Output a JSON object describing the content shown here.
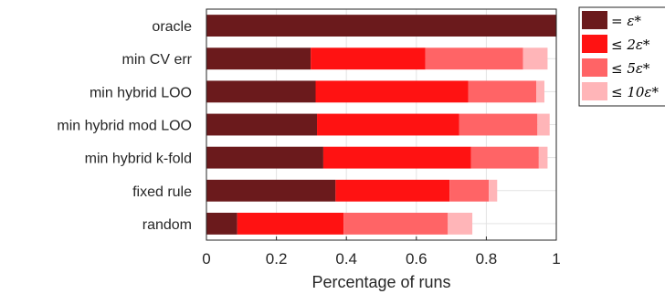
{
  "chart_data": {
    "type": "bar",
    "orientation": "horizontal",
    "stacked": true,
    "categories": [
      "oracle",
      "min CV err",
      "min hybrid LOO",
      "min hybrid mod LOO",
      "min hybrid k-fold",
      "fixed rule",
      "random"
    ],
    "series": [
      {
        "name": "= ε*",
        "color": "#6b1a1c",
        "values": [
          1.0,
          0.298,
          0.312,
          0.316,
          0.334,
          0.369,
          0.088
        ]
      },
      {
        "name": "≤ 2ε*",
        "color": "#ff1212",
        "values": [
          0.0,
          0.328,
          0.436,
          0.406,
          0.422,
          0.326,
          0.304
        ]
      },
      {
        "name": "≤ 5ε*",
        "color": "#ff6466",
        "values": [
          0.0,
          0.279,
          0.195,
          0.224,
          0.194,
          0.112,
          0.298
        ]
      },
      {
        "name": "≤ 10ε*",
        "color": "#ffb5b8",
        "values": [
          0.0,
          0.07,
          0.023,
          0.035,
          0.025,
          0.024,
          0.07
        ]
      }
    ],
    "xlabel": "Percentage of runs",
    "xlim": [
      0,
      1
    ],
    "xticks": [
      0,
      0.2,
      0.4,
      0.6,
      0.8,
      1
    ],
    "xtick_labels": [
      "0",
      "0.2",
      "0.4",
      "0.6",
      "0.8",
      "1"
    ],
    "grid": true,
    "legend": "outside-top-right"
  }
}
